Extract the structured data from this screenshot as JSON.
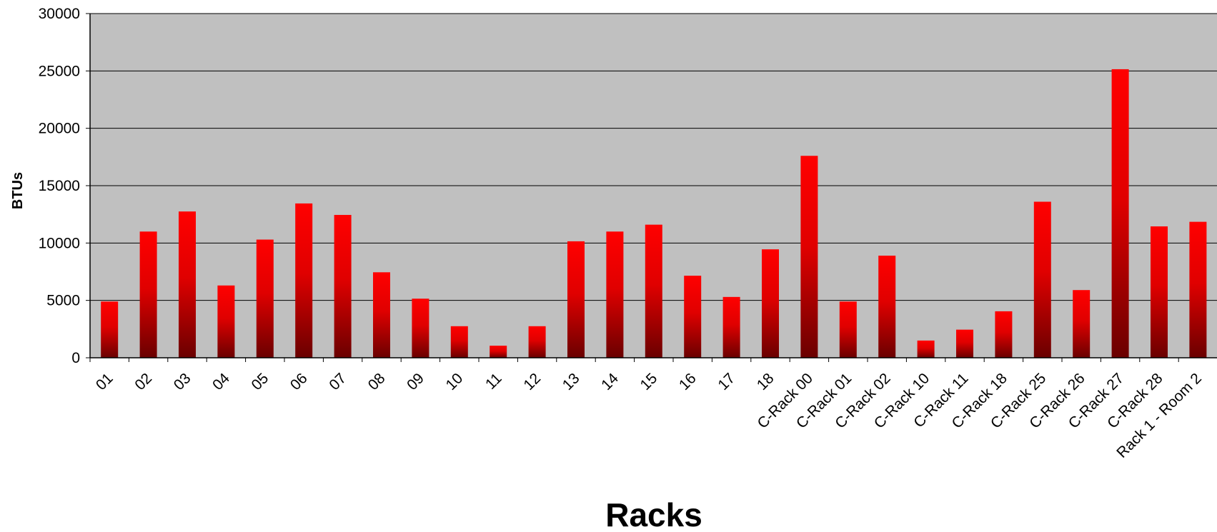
{
  "chart_data": {
    "type": "bar",
    "title": "",
    "xlabel": "Racks",
    "ylabel": "BTUs",
    "ylim": [
      0,
      30000
    ],
    "yticks": [
      0,
      5000,
      10000,
      15000,
      20000,
      25000,
      30000
    ],
    "grid": true,
    "legend": "none",
    "categories": [
      "01",
      "02",
      "03",
      "04",
      "05",
      "06",
      "07",
      "08",
      "09",
      "10",
      "11",
      "12",
      "13",
      "14",
      "15",
      "16",
      "17",
      "18",
      "C-Rack 00",
      "C-Rack 01",
      "C-Rack 02",
      "C-Rack 10",
      "C-Rack 11",
      "C-Rack 18",
      "C-Rack 25",
      "C-Rack 26",
      "C-Rack 27",
      "C-Rack 28",
      "Rack 1 - Room 2"
    ],
    "values": [
      4900,
      11000,
      12750,
      6300,
      10300,
      13450,
      12450,
      7450,
      5150,
      2750,
      1050,
      2750,
      10150,
      11000,
      11600,
      7150,
      5300,
      9450,
      17600,
      4900,
      8900,
      1500,
      2450,
      4050,
      13600,
      5900,
      25150,
      11450,
      11850
    ],
    "colors": {
      "plot_background": "#c0c0c0",
      "bar_top": "#ff0000",
      "bar_bottom": "#6a0000",
      "gridline": "#000000"
    }
  }
}
